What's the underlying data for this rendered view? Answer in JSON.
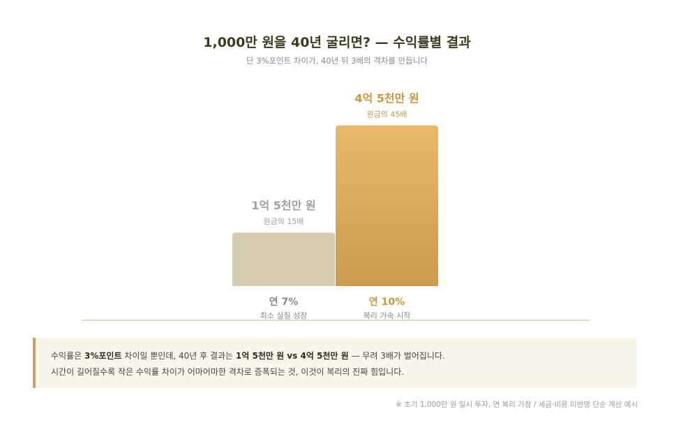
{
  "title": "1,000만 원을 40년 굴리면? — 수익률별 결과",
  "subtitle": "단 3%포인트 차이가, 40년 뒤 3배의 격차를 만듭니다",
  "chart_data": {
    "type": "bar",
    "title": "1,000만 원을 40년 굴리면? — 수익률별 결과",
    "categories": [
      "연 7%",
      "연 10%"
    ],
    "category_notes": [
      "최소 실질 성장",
      "복리 가속 시작"
    ],
    "values": [
      15,
      45
    ],
    "value_labels": [
      "1억 5천만 원",
      "4억 5천만 원"
    ],
    "value_notes": [
      "원금의 15배",
      "원금의 45배"
    ],
    "unit": "원금의 배수",
    "ylim": [
      0,
      50
    ],
    "grid": false,
    "colors": {
      "bar_7": "#d6cdb0",
      "bar_10_top": "#e8b968",
      "bar_10_bottom": "#cc9c4e",
      "label_7": "#a0a0a0",
      "label_10": "#c8983f",
      "category_7": "#8a8a8a",
      "category_10": "#c8983f",
      "baseline": "#d4d0b8"
    }
  },
  "callout": {
    "line1_a": "수익률은 ",
    "line1_b": "3%포인트",
    "line1_c": " 차이일 뿐인데, 40년 후 결과는 ",
    "line1_d": "1억 5천만 원 vs 4억 5천만 원",
    "line1_e": " — 무려 3배가 벌어집니다.",
    "line2": "시간이 길어질수록 작은 수익률 차이가 어마어마한 격차로 증폭되는 것, 이것이 복리의 진짜 힘입니다."
  },
  "footnote": "※ 초기 1,000만 원 일시 투자, 연 복리 가정 / 세금·비용 미반영 단순 계산 예시"
}
